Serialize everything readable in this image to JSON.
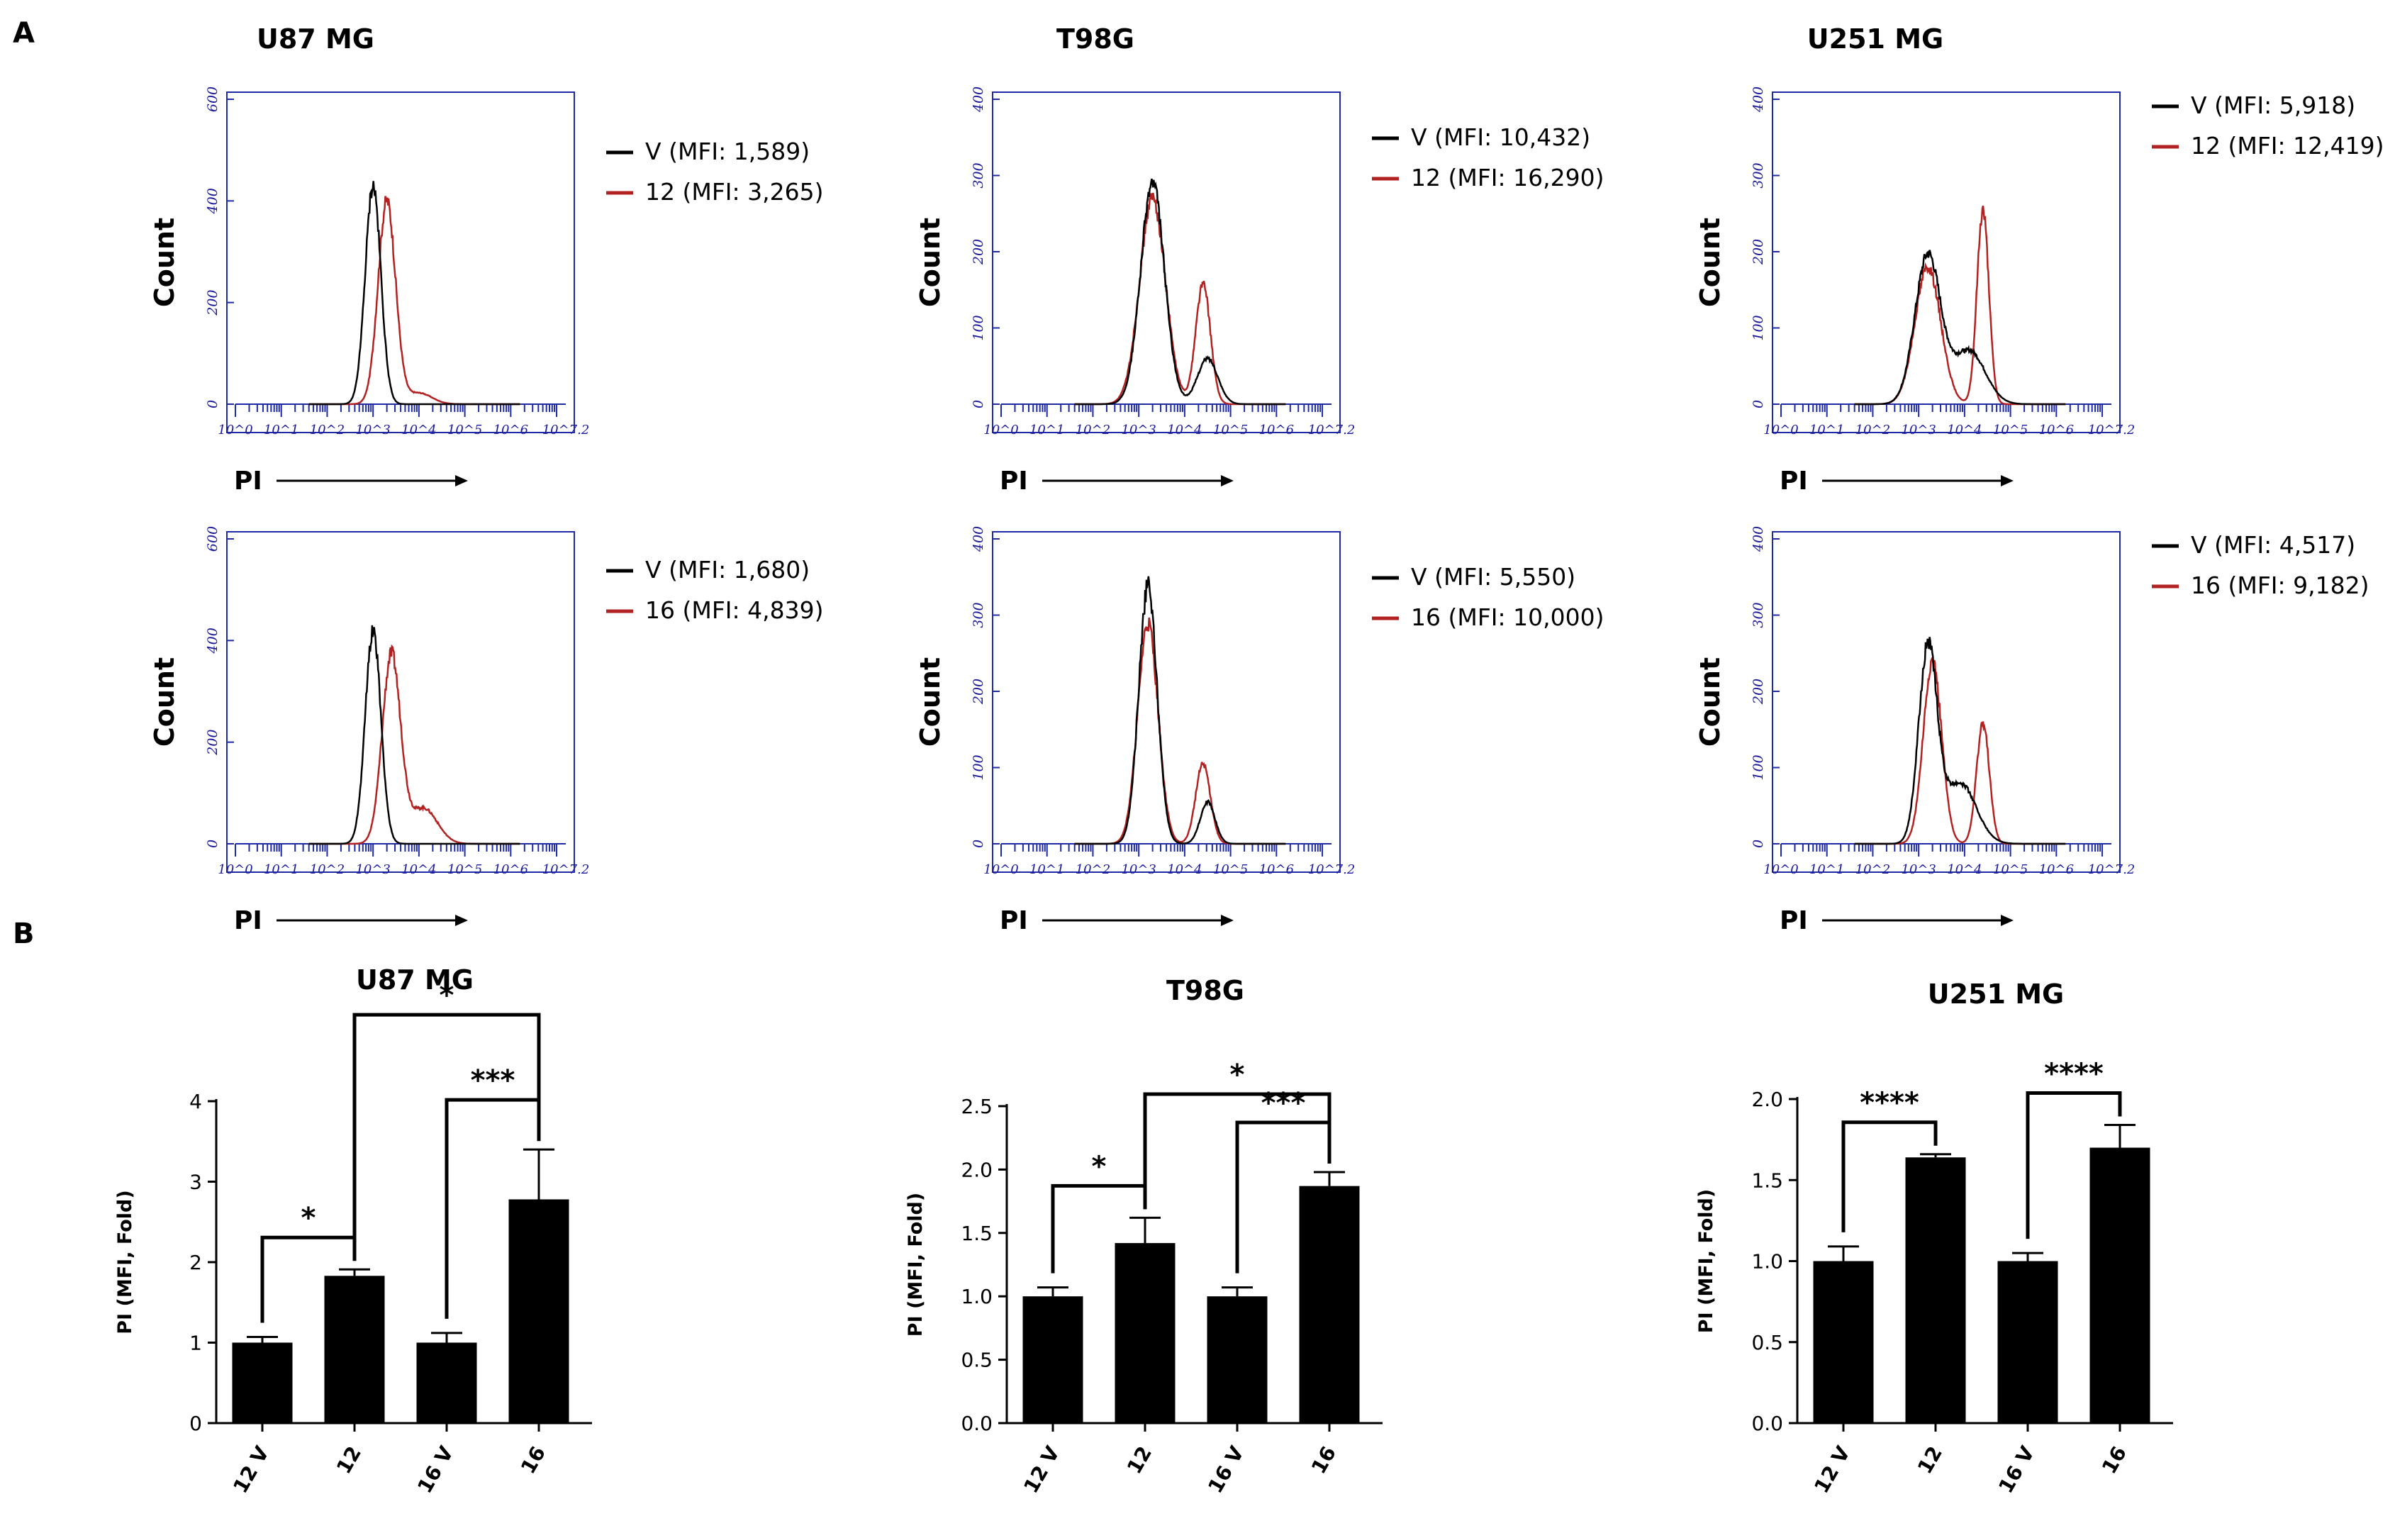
{
  "panel_labels": {
    "a": "A",
    "b": "B"
  },
  "histograms": {
    "count_label": "Count",
    "x_label": "PI",
    "x_ticks": [
      "10^0",
      "10^1",
      "10^2",
      "10^3",
      "10^4",
      "10^5",
      "10^6",
      "10^7.2"
    ],
    "colors": {
      "vehicle": "#000000",
      "treated": "#b22222",
      "frame": "#1f2ba6",
      "tick": "#1f2ba6"
    },
    "panels": [
      {
        "title": "U87 MG",
        "yticks": [
          0,
          200,
          400,
          600
        ],
        "ymax": 600,
        "legend": [
          "V (MFI: 1,589)",
          "12 (MFI: 3,265)"
        ],
        "v": [
          [
            3.0,
            430,
            0.17
          ]
        ],
        "t": [
          [
            3.3,
            400,
            0.19
          ],
          [
            4.0,
            22,
            0.28
          ]
        ]
      },
      {
        "title": "T98G",
        "yticks": [
          0,
          100,
          200,
          300,
          400
        ],
        "ymax": 400,
        "legend": [
          "V (MFI: 10,432)",
          "12 (MFI: 16,290)"
        ],
        "v": [
          [
            3.3,
            290,
            0.26
          ],
          [
            4.5,
            60,
            0.22
          ]
        ],
        "t": [
          [
            3.3,
            270,
            0.28
          ],
          [
            4.4,
            158,
            0.16
          ]
        ]
      },
      {
        "title": "U251 MG",
        "yticks": [
          0,
          100,
          200,
          300,
          400
        ],
        "ymax": 400,
        "legend": [
          "V (MFI: 5,918)",
          "12 (MFI: 12,419)"
        ],
        "v": [
          [
            3.2,
            195,
            0.28
          ],
          [
            4.1,
            70,
            0.35
          ]
        ],
        "t": [
          [
            3.2,
            180,
            0.28
          ],
          [
            4.4,
            255,
            0.13
          ]
        ]
      },
      {
        "title": "",
        "yticks": [
          0,
          200,
          400,
          600
        ],
        "ymax": 600,
        "legend": [
          "V (MFI: 1,680)",
          "16 (MFI: 4,839)"
        ],
        "v": [
          [
            3.0,
            420,
            0.17
          ]
        ],
        "t": [
          [
            3.4,
            370,
            0.2
          ],
          [
            4.1,
            70,
            0.3
          ]
        ]
      },
      {
        "title": "",
        "yticks": [
          0,
          100,
          200,
          300,
          400
        ],
        "ymax": 400,
        "legend": [
          "V (MFI: 5,550)",
          "16 (MFI: 10,000)"
        ],
        "v": [
          [
            3.2,
            338,
            0.2
          ],
          [
            4.5,
            55,
            0.16
          ]
        ],
        "t": [
          [
            3.2,
            290,
            0.22
          ],
          [
            4.4,
            105,
            0.16
          ]
        ]
      },
      {
        "title": "",
        "yticks": [
          0,
          100,
          200,
          300,
          400
        ],
        "ymax": 400,
        "legend": [
          "V (MFI: 4,517)",
          "16 (MFI: 9,182)"
        ],
        "v": [
          [
            3.2,
            255,
            0.2
          ],
          [
            3.9,
            80,
            0.35
          ]
        ],
        "t": [
          [
            3.3,
            240,
            0.2
          ],
          [
            4.4,
            158,
            0.14
          ]
        ]
      }
    ]
  },
  "chart_data": [
    {
      "type": "bar",
      "title": "U87 MG",
      "categories": [
        "12 V",
        "12",
        "16 V",
        "16"
      ],
      "values": [
        1.0,
        1.83,
        1.0,
        2.78
      ],
      "errors": [
        0.07,
        0.08,
        0.12,
        0.62
      ],
      "ylabel": "PI (MFI, Fold)",
      "ylim": [
        0,
        4
      ],
      "yticks": [
        "0",
        "1",
        "2",
        "3",
        "4"
      ],
      "significance": [
        {
          "from": 0,
          "to": 1,
          "label": "*"
        },
        {
          "from": 1,
          "to": 3,
          "label": "*"
        },
        {
          "from": 2,
          "to": 3,
          "label": "***"
        }
      ]
    },
    {
      "type": "bar",
      "title": "T98G",
      "categories": [
        "12 V",
        "12",
        "16 V",
        "16"
      ],
      "values": [
        1.0,
        1.42,
        1.0,
        1.87
      ],
      "errors": [
        0.07,
        0.2,
        0.07,
        0.11
      ],
      "ylabel": "PI (MFI, Fold)",
      "ylim": [
        0,
        2.5
      ],
      "yticks": [
        "0.0",
        "0.5",
        "1.0",
        "1.5",
        "2.0",
        "2.5"
      ],
      "significance": [
        {
          "from": 0,
          "to": 1,
          "label": "*"
        },
        {
          "from": 1,
          "to": 3,
          "label": "*"
        },
        {
          "from": 2,
          "to": 3,
          "label": "***"
        }
      ]
    },
    {
      "type": "bar",
      "title": "U251 MG",
      "categories": [
        "12 V",
        "12",
        "16 V",
        "16"
      ],
      "values": [
        1.0,
        1.64,
        1.0,
        1.7
      ],
      "errors": [
        0.09,
        0.02,
        0.05,
        0.14
      ],
      "ylabel": "PI (MFI, Fold)",
      "ylim": [
        0,
        2.0
      ],
      "yticks": [
        "0.0",
        "0.5",
        "1.0",
        "1.5",
        "2.0"
      ],
      "significance": [
        {
          "from": 0,
          "to": 1,
          "label": "****"
        },
        {
          "from": 2,
          "to": 3,
          "label": "****"
        }
      ]
    }
  ]
}
